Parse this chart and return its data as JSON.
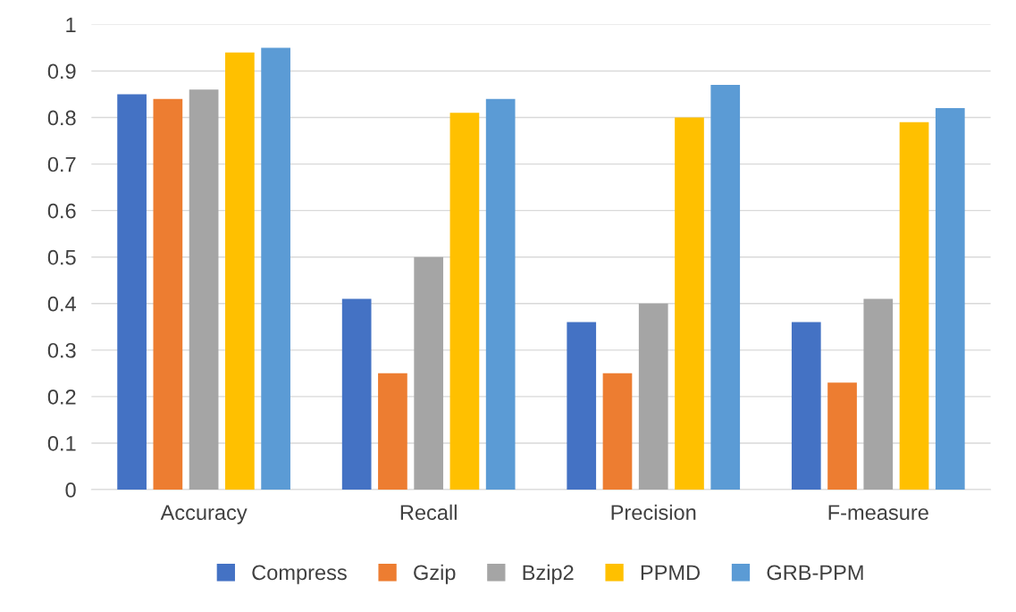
{
  "chart_data": {
    "type": "bar",
    "categories": [
      "Accuracy",
      "Recall",
      "Precision",
      "F-measure"
    ],
    "series": [
      {
        "name": "Compress",
        "color": "#4472c4",
        "values": [
          0.85,
          0.41,
          0.36,
          0.36
        ]
      },
      {
        "name": "Gzip",
        "color": "#ed7d31",
        "values": [
          0.84,
          0.25,
          0.25,
          0.23
        ]
      },
      {
        "name": "Bzip2",
        "color": "#a5a5a5",
        "values": [
          0.86,
          0.5,
          0.4,
          0.41
        ]
      },
      {
        "name": "PPMD",
        "color": "#ffc000",
        "values": [
          0.94,
          0.81,
          0.8,
          0.79
        ]
      },
      {
        "name": "GRB-PPM",
        "color": "#5b9bd5",
        "values": [
          0.95,
          0.84,
          0.87,
          0.82
        ]
      }
    ],
    "ylim": [
      0,
      1
    ],
    "yticks": [
      0,
      0.1,
      0.2,
      0.3,
      0.4,
      0.5,
      0.6,
      0.7,
      0.8,
      0.9,
      1
    ],
    "grid": "y",
    "legend": "bottom"
  }
}
